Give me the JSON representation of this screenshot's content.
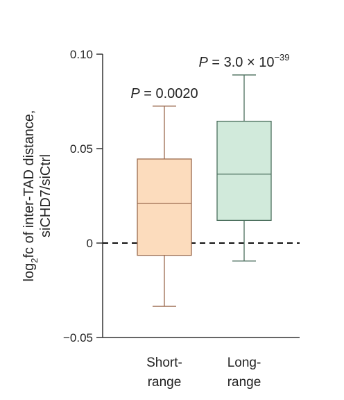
{
  "chart_data": {
    "type": "box",
    "ylabel_line1": "log",
    "ylabel_sub": "2",
    "ylabel_line1_rest": "fc of inter-TAD distance,",
    "ylabel_line2": "siCHD7/siCtrl",
    "ylim": [
      -0.05,
      0.1
    ],
    "yticks": [
      {
        "value": 0.1,
        "label": "0.10"
      },
      {
        "value": 0.05,
        "label": "0.05"
      },
      {
        "value": 0,
        "label": "0"
      },
      {
        "value": -0.05,
        "label": "−0.05"
      }
    ],
    "reference_line": 0,
    "boxes": [
      {
        "label_line1": "Short-",
        "label_line2": "range",
        "min": -0.0335,
        "q1": -0.0065,
        "median": 0.021,
        "q3": 0.0445,
        "max": 0.0725,
        "fill": "#fcdcbd",
        "stroke": "#9a6a4e",
        "p_prefix": "P",
        "p_value": " = 0.0020",
        "p_sup": ""
      },
      {
        "label_line1": "Long-",
        "label_line2": "range",
        "min": -0.0095,
        "q1": 0.012,
        "median": 0.0365,
        "q3": 0.0645,
        "max": 0.089,
        "fill": "#d1eadb",
        "stroke": "#4a6e5c",
        "p_prefix": "P",
        "p_value": " = 3.0 × 10",
        "p_sup": "−39"
      }
    ]
  }
}
